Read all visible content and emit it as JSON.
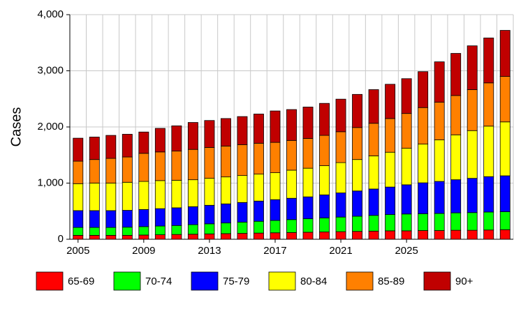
{
  "chart_data": {
    "type": "stacked_bar",
    "y_label": "Cases",
    "categories": [
      "2005",
      null,
      null,
      null,
      "2009",
      null,
      null,
      null,
      "2013",
      null,
      null,
      null,
      "2017",
      null,
      null,
      null,
      "2021",
      null,
      null,
      null,
      "2025",
      null,
      null,
      null,
      null,
      null,
      null
    ],
    "series": [
      {
        "name": "65-69",
        "color": "#ff0000",
        "values": [
          70,
          70,
          70,
          70,
          75,
          80,
          85,
          90,
          95,
          100,
          105,
          110,
          115,
          120,
          125,
          130,
          135,
          140,
          145,
          150,
          150,
          155,
          155,
          160,
          160,
          165,
          170
        ]
      },
      {
        "name": "70-74",
        "color": "#00ff00",
        "values": [
          140,
          140,
          140,
          145,
          150,
          155,
          160,
          170,
          180,
          190,
          200,
          210,
          220,
          230,
          240,
          250,
          260,
          270,
          280,
          290,
          300,
          300,
          305,
          310,
          315,
          320,
          320
        ]
      },
      {
        "name": "75-79",
        "color": "#0000ff",
        "values": [
          300,
          300,
          300,
          300,
          305,
          310,
          315,
          320,
          330,
          340,
          350,
          360,
          370,
          380,
          390,
          410,
          430,
          450,
          470,
          490,
          520,
          550,
          570,
          590,
          610,
          630,
          640
        ]
      },
      {
        "name": "80-84",
        "color": "#ffff00",
        "values": [
          480,
          490,
          490,
          500,
          500,
          500,
          490,
          480,
          480,
          480,
          480,
          480,
          480,
          500,
          510,
          520,
          540,
          560,
          590,
          620,
          650,
          690,
          740,
          800,
          850,
          900,
          960
        ]
      },
      {
        "name": "85-89",
        "color": "#ff8000",
        "values": [
          400,
          420,
          440,
          450,
          500,
          510,
          520,
          540,
          550,
          550,
          550,
          550,
          540,
          530,
          530,
          540,
          550,
          570,
          580,
          600,
          620,
          650,
          670,
          700,
          730,
          770,
          810
        ]
      },
      {
        "name": "90+",
        "color": "#c00000",
        "values": [
          410,
          400,
          410,
          405,
          380,
          420,
          450,
          480,
          480,
          490,
          500,
          520,
          560,
          550,
          560,
          570,
          580,
          590,
          600,
          610,
          620,
          640,
          720,
          750,
          780,
          800,
          820
        ]
      }
    ],
    "ylim": [
      0,
      4000
    ],
    "yticks": [
      0,
      {
        "value": 1000,
        "label": "1,000"
      },
      {
        "value": 2000,
        "label": "2,000"
      },
      {
        "value": 3000,
        "label": "3,000"
      },
      {
        "value": 4000,
        "label": "4,000"
      }
    ],
    "grid": true
  }
}
